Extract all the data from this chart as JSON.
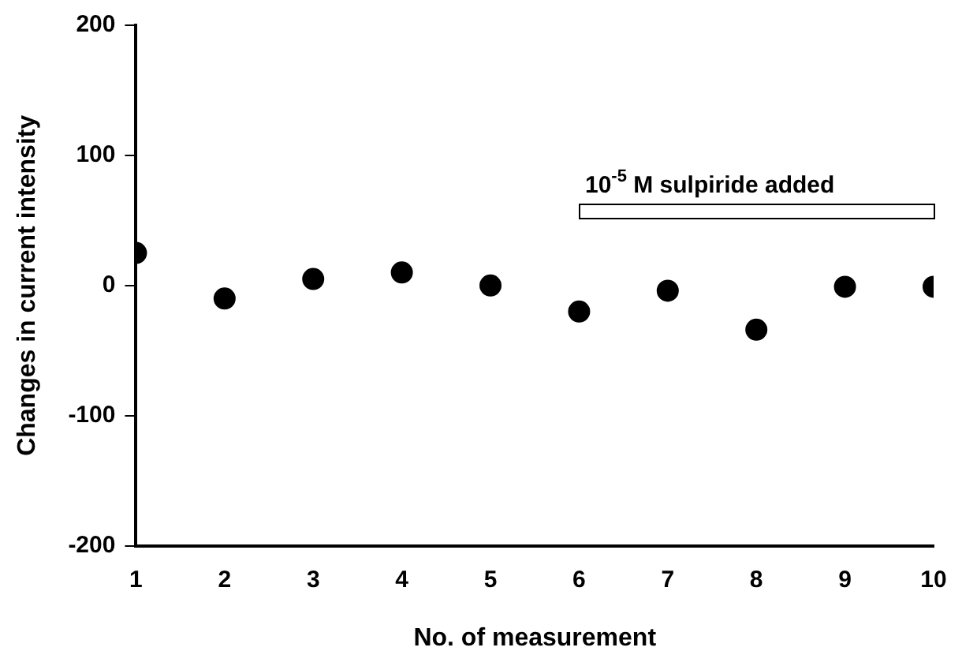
{
  "chart_data": {
    "type": "scatter",
    "xlabel": "No. of measurement",
    "ylabel": "Changes in current intensity",
    "x": [
      1,
      2,
      3,
      4,
      5,
      6,
      7,
      8,
      9,
      10
    ],
    "values": [
      25,
      -10,
      5,
      10,
      0,
      -20,
      -4,
      -34,
      -1,
      -1
    ],
    "color": "#000000",
    "marker": "circle",
    "xlim": [
      1,
      10
    ],
    "xticks": [
      1,
      2,
      3,
      4,
      5,
      6,
      7,
      8,
      9,
      10
    ],
    "ylim": [
      -200,
      200
    ],
    "yticks": [
      -200,
      -100,
      0,
      100,
      200
    ],
    "grid": false,
    "legend": false,
    "annotations": [
      "10$^{-5}$ M sulpiride added"
    ]
  }
}
